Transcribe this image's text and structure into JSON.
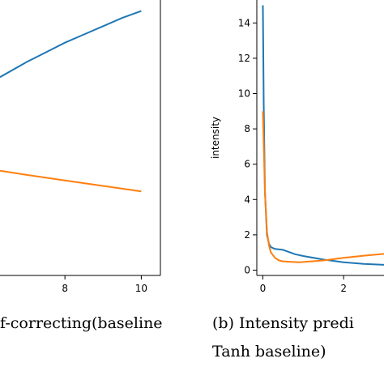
{
  "chart_data": [
    {
      "type": "line",
      "title": "",
      "xlabel": "",
      "ylabel": "",
      "xlim": [
        6.3,
        10.5
      ],
      "ylim": [
        0,
        1
      ],
      "x_ticks": [
        8,
        10
      ],
      "series": [
        {
          "color": "#1f77b4",
          "x": [
            6.3,
            7.0,
            7.5,
            8.0,
            8.5,
            9.0,
            9.5,
            10.0
          ],
          "y": [
            0.72,
            0.775,
            0.81,
            0.845,
            0.875,
            0.905,
            0.935,
            0.96
          ]
        },
        {
          "color": "#ff7f0e",
          "x": [
            6.3,
            7.0,
            8.0,
            9.0,
            10.0
          ],
          "y": [
            0.38,
            0.365,
            0.345,
            0.325,
            0.305
          ]
        }
      ],
      "caption_line1": "f-correcting(baseline"
    },
    {
      "type": "line",
      "title": "",
      "xlabel": "",
      "ylabel": "intensity",
      "xlim": [
        -0.15,
        3.0
      ],
      "ylim": [
        -0.3,
        15.3
      ],
      "x_ticks": [
        0,
        2
      ],
      "y_ticks": [
        0,
        2,
        4,
        6,
        8,
        10,
        12,
        14
      ],
      "series": [
        {
          "color": "#1f77b4",
          "x": [
            0.0,
            0.02,
            0.05,
            0.1,
            0.15,
            0.2,
            0.3,
            0.5,
            0.8,
            1.0,
            1.5,
            2.0,
            2.5,
            3.0
          ],
          "y": [
            15.0,
            9.5,
            4.5,
            2.0,
            1.5,
            1.3,
            1.2,
            1.15,
            0.9,
            0.8,
            0.6,
            0.45,
            0.35,
            0.3
          ]
        },
        {
          "color": "#ff7f0e",
          "x": [
            0.0,
            0.05,
            0.1,
            0.15,
            0.2,
            0.3,
            0.4,
            0.5,
            0.7,
            0.9,
            1.2,
            1.5,
            2.0,
            2.5,
            3.0
          ],
          "y": [
            9.0,
            4.5,
            2.2,
            1.4,
            1.0,
            0.7,
            0.55,
            0.5,
            0.47,
            0.45,
            0.5,
            0.55,
            0.7,
            0.82,
            0.92
          ]
        }
      ],
      "caption_line1": "(b)  Intensity predi",
      "caption_line2": "Tanh baseline)"
    }
  ]
}
